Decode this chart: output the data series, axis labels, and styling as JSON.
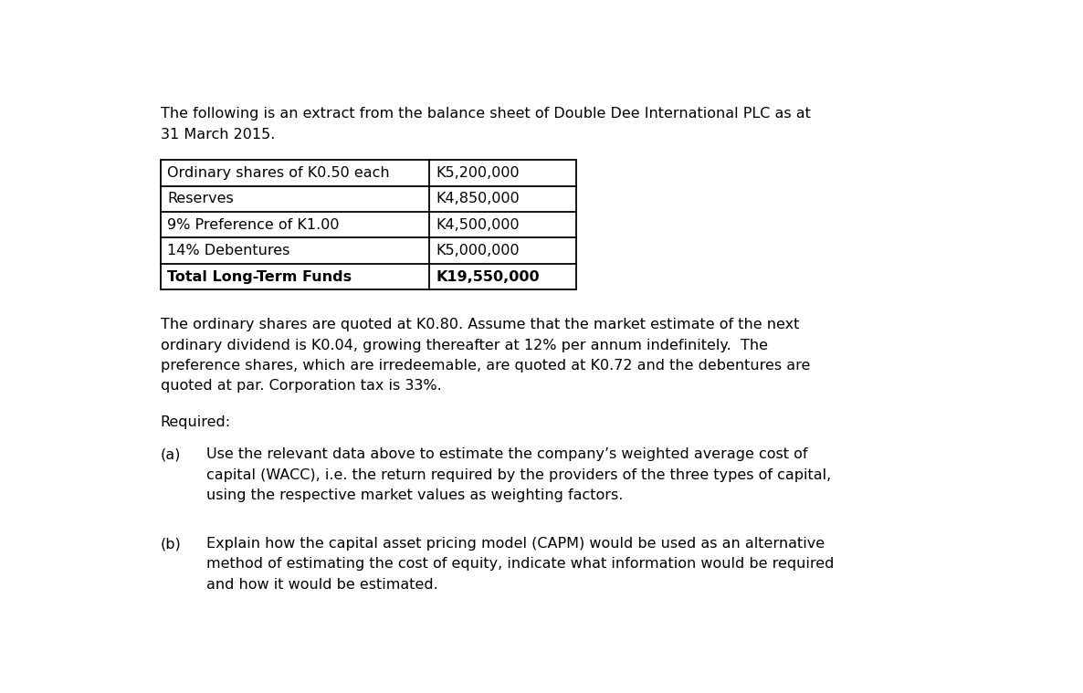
{
  "bg_color": "#ffffff",
  "text_color": "#000000",
  "font_family": "DejaVu Sans",
  "intro_line1": "The following is an extract from the balance sheet of Double Dee International PLC as at",
  "intro_line2": "31 March 2015.",
  "table": {
    "col1": [
      "Ordinary shares of K0.50 each",
      "Reserves",
      "9% Preference of K1.00",
      "14% Debentures",
      "Total Long-Term Funds"
    ],
    "col2": [
      "K5,200,000",
      "K4,850,000",
      "K4,500,000",
      "K5,000,000",
      "K19,550,000"
    ],
    "bold_last_row": true
  },
  "para1_lines": [
    "The ordinary shares are quoted at K0.80. Assume that the market estimate of the next",
    "ordinary dividend is K0.04, growing thereafter at 12% per annum indefinitely.  The",
    "preference shares, which are irredeemable, are quoted at K0.72 and the debentures are",
    "quoted at par. Corporation tax is 33%."
  ],
  "required_label": "Required:",
  "part_a_label": "(a)",
  "part_a_lines": [
    "Use the relevant data above to estimate the company’s weighted average cost of",
    "capital (WACC), i.e. the return required by the providers of the three types of capital,",
    "using the respective market values as weighting factors."
  ],
  "part_b_label": "(b)",
  "part_b_lines": [
    "Explain how the capital asset pricing model (CAPM) would be used as an alternative",
    "method of estimating the cost of equity, indicate what information would be required",
    "and how it would be estimated."
  ],
  "figsize": [
    11.86,
    7.59
  ],
  "dpi": 100
}
